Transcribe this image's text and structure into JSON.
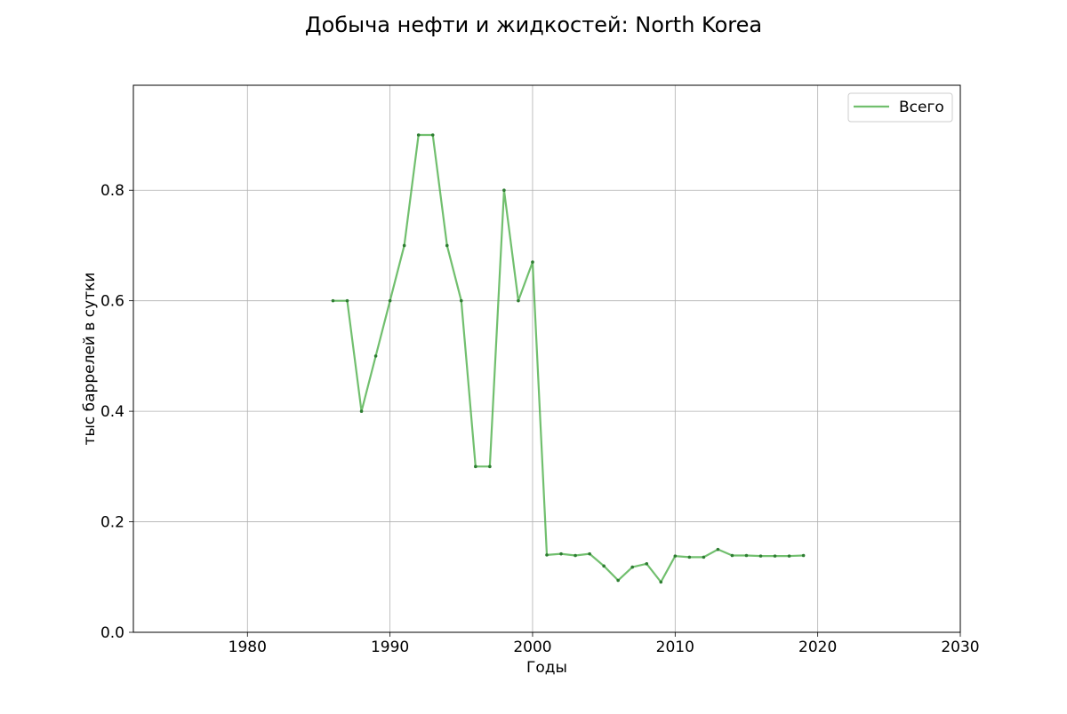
{
  "chart_data": {
    "type": "line",
    "title": "Добыча нефти и жидкостей: North Korea",
    "xlabel": "Годы",
    "ylabel": "тыс баррелей в сутки",
    "xlim": [
      1972,
      2030
    ],
    "ylim": [
      0,
      0.99
    ],
    "xticks": [
      1980,
      1990,
      2000,
      2010,
      2020,
      2030
    ],
    "yticks": [
      0.0,
      0.2,
      0.4,
      0.6,
      0.8
    ],
    "xtick_labels": [
      "1980",
      "1990",
      "2000",
      "2010",
      "2020",
      "2030"
    ],
    "ytick_labels": [
      "0.0",
      "0.2",
      "0.4",
      "0.6",
      "0.8"
    ],
    "grid": true,
    "legend_position": "top-right",
    "series": [
      {
        "name": "Всего",
        "color": "#4daf4a",
        "x": [
          1986,
          1987,
          1988,
          1989,
          1990,
          1991,
          1992,
          1993,
          1994,
          1995,
          1996,
          1997,
          1998,
          1999,
          2000,
          2001,
          2002,
          2003,
          2004,
          2005,
          2006,
          2007,
          2008,
          2009,
          2010,
          2011,
          2012,
          2013,
          2014,
          2015,
          2016,
          2017,
          2018,
          2019
        ],
        "y": [
          0.6,
          0.6,
          0.4,
          0.5,
          0.6,
          0.7,
          0.9,
          0.9,
          0.7,
          0.6,
          0.3,
          0.3,
          0.8,
          0.6,
          0.67,
          0.14,
          0.142,
          0.139,
          0.142,
          0.12,
          0.094,
          0.118,
          0.124,
          0.091,
          0.138,
          0.136,
          0.136,
          0.15,
          0.139,
          0.139,
          0.138,
          0.138,
          0.138,
          0.139
        ]
      }
    ]
  }
}
